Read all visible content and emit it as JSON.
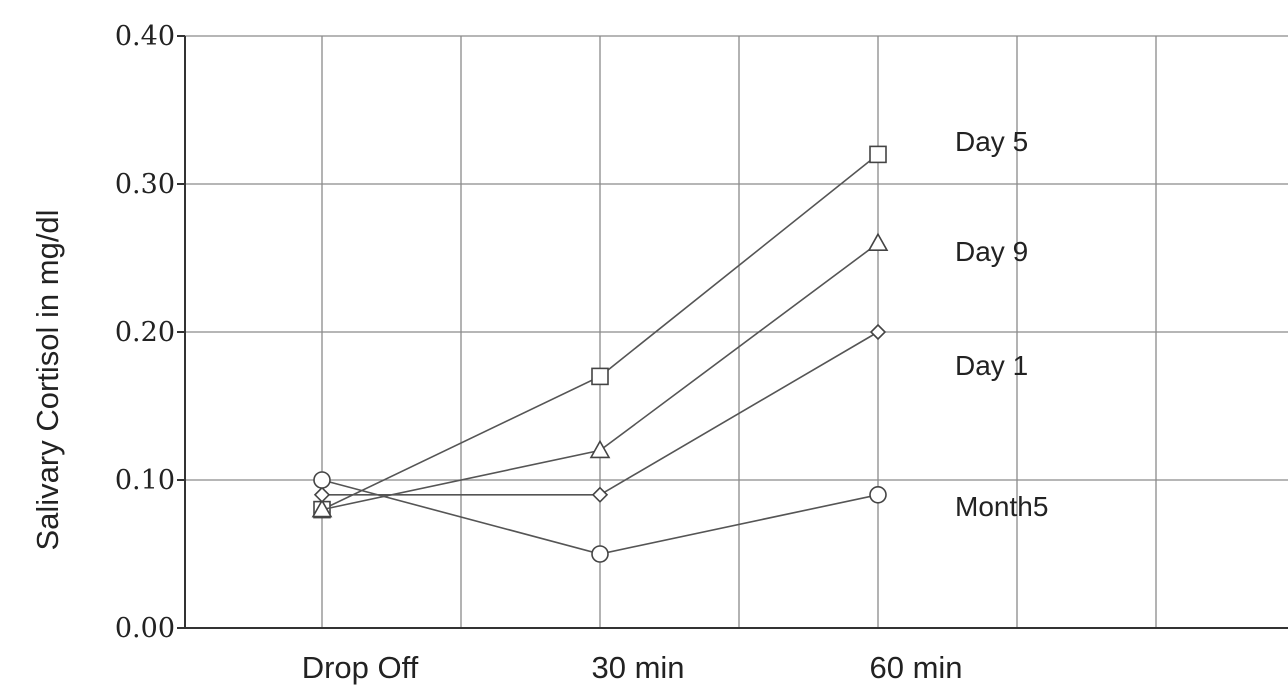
{
  "chart_data": {
    "type": "line",
    "title": "",
    "xlabel": "",
    "ylabel": "Salivary Cortisol in mg/dl",
    "categories": [
      "Drop Off",
      "30 min",
      "60 min"
    ],
    "ylim": [
      0.0,
      0.4
    ],
    "yticks": [
      "0.00",
      "0.10",
      "0.20",
      "0.30",
      "0.40"
    ],
    "grid": true,
    "series": [
      {
        "name": "Day 5",
        "marker": "square",
        "values": [
          0.08,
          0.17,
          0.32
        ]
      },
      {
        "name": "Day 9",
        "marker": "triangle",
        "values": [
          0.08,
          0.12,
          0.26
        ]
      },
      {
        "name": "Day 1",
        "marker": "diamond",
        "values": [
          0.09,
          0.09,
          0.2
        ]
      },
      {
        "name": "Month5",
        "marker": "circle",
        "values": [
          0.1,
          0.05,
          0.09
        ]
      }
    ]
  }
}
